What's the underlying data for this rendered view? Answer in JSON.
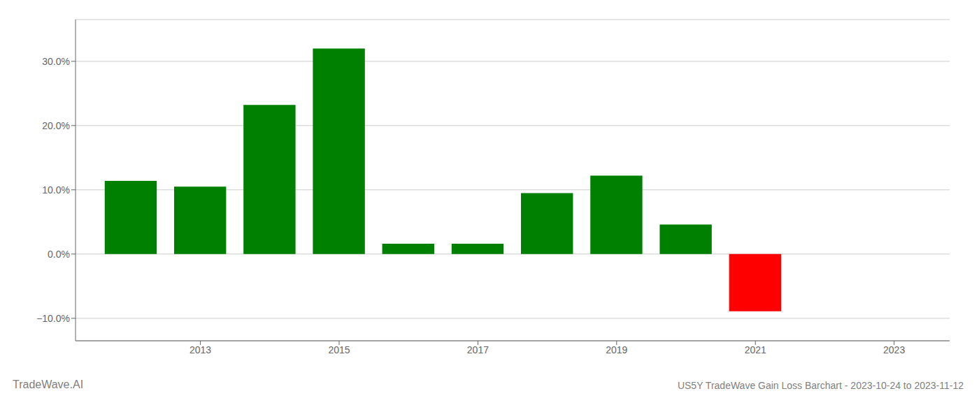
{
  "chart_data": {
    "type": "bar",
    "title": "US5Y TradeWave Gain Loss Barchart - 2023-10-24 to 2023-11-12",
    "annotations": [
      "TradeWave.AI"
    ],
    "x": [
      2012,
      2013,
      2014,
      2015,
      2016,
      2017,
      2018,
      2019,
      2020,
      2021,
      2022
    ],
    "values": [
      0.114,
      0.105,
      0.232,
      0.32,
      0.016,
      0.016,
      0.095,
      0.122,
      0.046,
      -0.089,
      0.0
    ],
    "colors": [
      "#008000",
      "#008000",
      "#008000",
      "#008000",
      "#008000",
      "#008000",
      "#008000",
      "#008000",
      "#008000",
      "#ff0000",
      "#008000"
    ],
    "xlim": [
      2011.2,
      2023.8
    ],
    "xticks": [
      2013,
      2015,
      2017,
      2019,
      2021,
      2023
    ],
    "ylim": [
      -0.135,
      0.365
    ],
    "yticks": [
      {
        "value": -0.1,
        "label": "−10.0%"
      },
      {
        "value": 0.0,
        "label": "0.0%"
      },
      {
        "value": 0.1,
        "label": "10.0%"
      },
      {
        "value": 0.2,
        "label": "20.0%"
      },
      {
        "value": 0.3,
        "label": "30.0%"
      }
    ],
    "grid": true
  }
}
